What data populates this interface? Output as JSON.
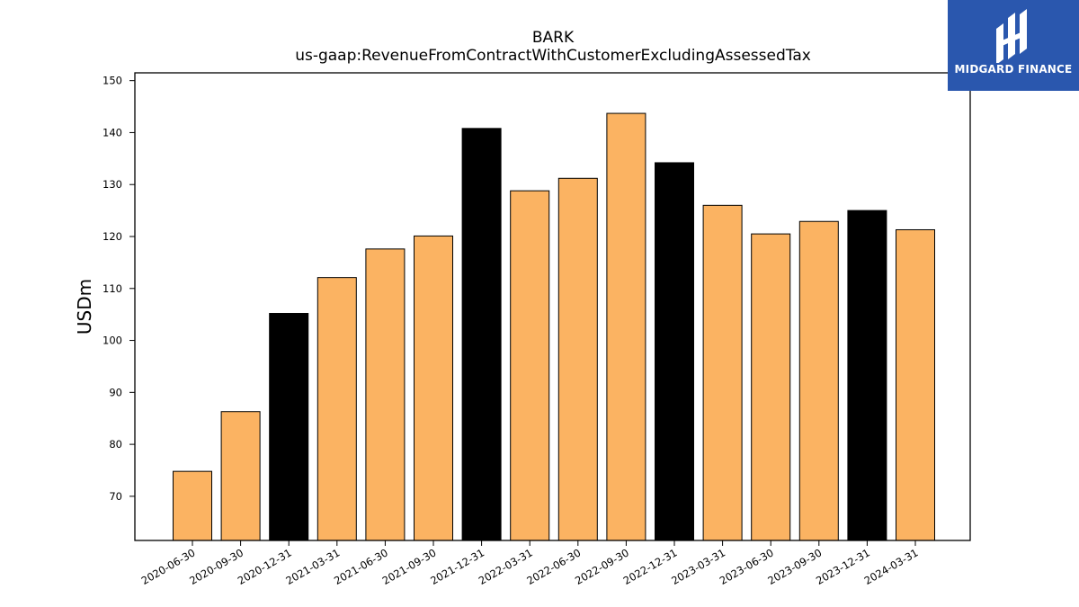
{
  "chart_data": {
    "type": "bar",
    "title": "BARK",
    "subtitle": "us-gaap:RevenueFromContractWithCustomerExcludingAssessedTax",
    "xlabel": "",
    "ylabel": "USDm",
    "ylim": [
      61.5,
      151.5
    ],
    "yticks": [
      70,
      80,
      90,
      100,
      110,
      120,
      130,
      140,
      150
    ],
    "grid": false,
    "categories": [
      "2020-06-30",
      "2020-09-30",
      "2020-12-31",
      "2021-03-31",
      "2021-06-30",
      "2021-09-30",
      "2021-12-31",
      "2022-03-31",
      "2022-06-30",
      "2022-09-30",
      "2022-12-31",
      "2023-03-31",
      "2023-06-30",
      "2023-09-30",
      "2023-12-31",
      "2024-03-31"
    ],
    "values": [
      74.8,
      86.3,
      105.2,
      112.1,
      117.6,
      120.1,
      140.8,
      128.8,
      131.2,
      143.7,
      134.2,
      126.0,
      120.5,
      122.9,
      125.0,
      121.3
    ],
    "bar_colors": [
      "#fbb362",
      "#fbb362",
      "#000000",
      "#fbb362",
      "#fbb362",
      "#fbb362",
      "#000000",
      "#fbb362",
      "#fbb362",
      "#fbb362",
      "#000000",
      "#fbb362",
      "#fbb362",
      "#fbb362",
      "#000000",
      "#fbb362"
    ]
  },
  "logo": {
    "text": "MIDGARD FINANCE",
    "background": "#2a57ae"
  }
}
